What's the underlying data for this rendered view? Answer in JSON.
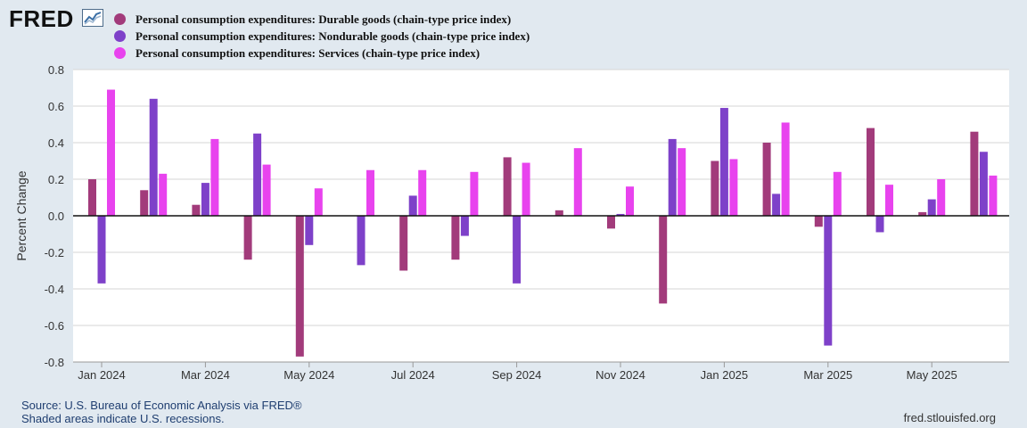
{
  "header": {
    "logo_text": "FRED",
    "logo_icon": "fred-chart-line-icon"
  },
  "legend": [
    {
      "label": "Personal consumption expenditures: Durable goods (chain-type price index)",
      "color": "#a23b7b"
    },
    {
      "label": "Personal consumption expenditures: Nondurable goods (chain-type price index)",
      "color": "#7e41c9"
    },
    {
      "label": "Personal consumption expenditures: Services (chain-type price index)",
      "color": "#e843ee"
    }
  ],
  "footer": {
    "source": "Source: U.S. Bureau of Economic Analysis via FRED®",
    "recessions": "Shaded areas indicate U.S. recessions.",
    "url": "fred.stlouisfed.org"
  },
  "chart_data": {
    "type": "bar",
    "title": "",
    "xlabel": "",
    "ylabel": "Percent Change",
    "ylim": [
      -0.8,
      0.8
    ],
    "yticks": [
      0.8,
      0.6,
      0.4,
      0.2,
      0.0,
      -0.2,
      -0.4,
      -0.6,
      -0.8
    ],
    "ytick_labels": [
      "0.8",
      "0.6",
      "0.4",
      "0.2",
      "0.0",
      "-0.2",
      "-0.4",
      "-0.6",
      "-0.8"
    ],
    "grid": true,
    "categories": [
      "Jan 2024",
      "Feb 2024",
      "Mar 2024",
      "Apr 2024",
      "May 2024",
      "Jun 2024",
      "Jul 2024",
      "Aug 2024",
      "Sep 2024",
      "Oct 2024",
      "Nov 2024",
      "Dec 2024",
      "Jan 2025",
      "Feb 2025",
      "Mar 2025",
      "Apr 2025",
      "May 2025",
      "Jun 2025"
    ],
    "xtick_labels": [
      {
        "index": 0,
        "label": "Jan 2024"
      },
      {
        "index": 2,
        "label": "Mar 2024"
      },
      {
        "index": 4,
        "label": "May 2024"
      },
      {
        "index": 6,
        "label": "Jul 2024"
      },
      {
        "index": 8,
        "label": "Sep 2024"
      },
      {
        "index": 10,
        "label": "Nov 2024"
      },
      {
        "index": 12,
        "label": "Jan 2025"
      },
      {
        "index": 14,
        "label": "Mar 2025"
      },
      {
        "index": 16,
        "label": "May 2025"
      }
    ],
    "series": [
      {
        "name": "Personal consumption expenditures: Durable goods (chain-type price index)",
        "color": "#a23b7b",
        "values": [
          0.2,
          0.14,
          0.06,
          -0.24,
          -0.77,
          0.0,
          -0.3,
          -0.24,
          0.32,
          0.03,
          -0.07,
          -0.48,
          0.3,
          0.4,
          -0.06,
          0.48,
          0.02,
          0.46
        ]
      },
      {
        "name": "Personal consumption expenditures: Nondurable goods (chain-type price index)",
        "color": "#7e41c9",
        "values": [
          -0.37,
          0.64,
          0.18,
          0.45,
          -0.16,
          -0.27,
          0.11,
          -0.11,
          -0.37,
          0.0,
          0.01,
          0.42,
          0.59,
          0.12,
          -0.71,
          -0.09,
          0.09,
          0.35
        ]
      },
      {
        "name": "Personal consumption expenditures: Services (chain-type price index)",
        "color": "#e843ee",
        "values": [
          0.69,
          0.23,
          0.42,
          0.28,
          0.15,
          0.25,
          0.25,
          0.24,
          0.29,
          0.37,
          0.16,
          0.37,
          0.31,
          0.51,
          0.24,
          0.17,
          0.2,
          0.22
        ]
      }
    ]
  }
}
